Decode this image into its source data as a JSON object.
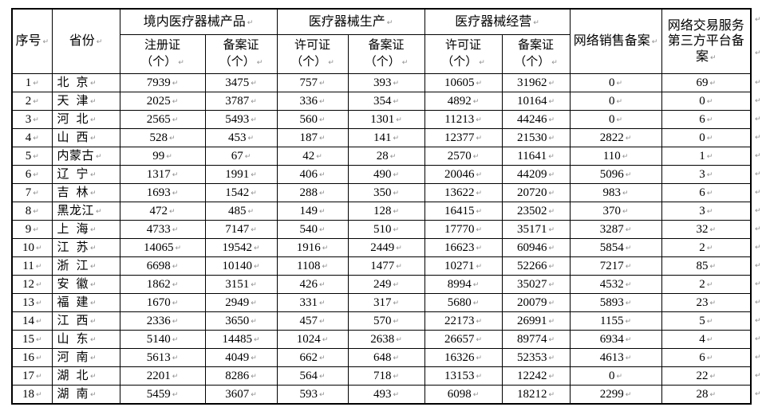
{
  "page": {
    "background": "#ffffff",
    "border_color": "#000000",
    "text_color": "#000000",
    "format_mark_color": "#8f8f8f"
  },
  "marks": {
    "end_mark": "↵"
  },
  "table": {
    "headers": {
      "index": "序号",
      "province": "省份",
      "groups": [
        {
          "label": "境内医疗器械产品"
        },
        {
          "label": "医疗器械生产"
        },
        {
          "label": "医疗器械经营"
        }
      ],
      "online_sales": "网络销售备案",
      "platform": "网络交易服务第三方平台备案"
    },
    "subheaders": [
      {
        "line1": "注册证",
        "line2": "（个）"
      },
      {
        "line1": "备案证",
        "line2": "（个）"
      },
      {
        "line1": "许可证",
        "line2": "（个）"
      },
      {
        "line1": "备案证",
        "line2": "（个）"
      },
      {
        "line1": "许可证",
        "line2": "（个）"
      },
      {
        "line1": "备案证",
        "line2": "（个）"
      }
    ],
    "rows": [
      {
        "no": "1",
        "province": "北  京",
        "values": [
          7939,
          3475,
          757,
          393,
          10605,
          31962,
          0,
          69
        ]
      },
      {
        "no": "2",
        "province": "天  津",
        "values": [
          2025,
          3787,
          336,
          354,
          4892,
          10164,
          0,
          0
        ]
      },
      {
        "no": "3",
        "province": "河  北",
        "values": [
          2565,
          5493,
          560,
          1301,
          11213,
          44246,
          0,
          6
        ]
      },
      {
        "no": "4",
        "province": "山  西",
        "values": [
          528,
          453,
          187,
          141,
          12377,
          21530,
          2822,
          0
        ]
      },
      {
        "no": "5",
        "province": "内蒙古",
        "values": [
          99,
          67,
          42,
          28,
          2570,
          11641,
          110,
          1
        ]
      },
      {
        "no": "6",
        "province": "辽  宁",
        "values": [
          1317,
          1991,
          406,
          490,
          20046,
          44209,
          5096,
          3
        ]
      },
      {
        "no": "7",
        "province": "吉  林",
        "values": [
          1693,
          1542,
          288,
          350,
          13622,
          20720,
          983,
          6
        ]
      },
      {
        "no": "8",
        "province": "黑龙江",
        "values": [
          472,
          485,
          149,
          128,
          16415,
          23502,
          370,
          3
        ]
      },
      {
        "no": "9",
        "province": "上  海",
        "values": [
          4733,
          7147,
          540,
          510,
          17770,
          35171,
          3287,
          32
        ]
      },
      {
        "no": "10",
        "province": "江  苏",
        "values": [
          14065,
          19542,
          1916,
          2449,
          16623,
          60946,
          5854,
          2
        ]
      },
      {
        "no": "11",
        "province": "浙  江",
        "values": [
          6698,
          10140,
          1108,
          1477,
          10271,
          52266,
          7217,
          85
        ]
      },
      {
        "no": "12",
        "province": "安  徽",
        "values": [
          1862,
          3151,
          426,
          249,
          8994,
          35027,
          4532,
          2
        ]
      },
      {
        "no": "13",
        "province": "福  建",
        "values": [
          1670,
          2949,
          331,
          317,
          5680,
          20079,
          5893,
          23
        ]
      },
      {
        "no": "14",
        "province": "江  西",
        "values": [
          2336,
          3650,
          457,
          570,
          22173,
          26991,
          1155,
          5
        ]
      },
      {
        "no": "15",
        "province": "山  东",
        "values": [
          5140,
          14485,
          1024,
          2638,
          26657,
          89774,
          6934,
          4
        ]
      },
      {
        "no": "16",
        "province": "河  南",
        "values": [
          5613,
          4049,
          662,
          648,
          16326,
          52353,
          4613,
          6
        ]
      },
      {
        "no": "17",
        "province": "湖  北",
        "values": [
          2201,
          8286,
          564,
          718,
          13153,
          12242,
          0,
          22
        ]
      },
      {
        "no": "18",
        "province": "湖  南",
        "values": [
          5459,
          3607,
          593,
          493,
          6098,
          18212,
          2299,
          28
        ]
      }
    ]
  }
}
